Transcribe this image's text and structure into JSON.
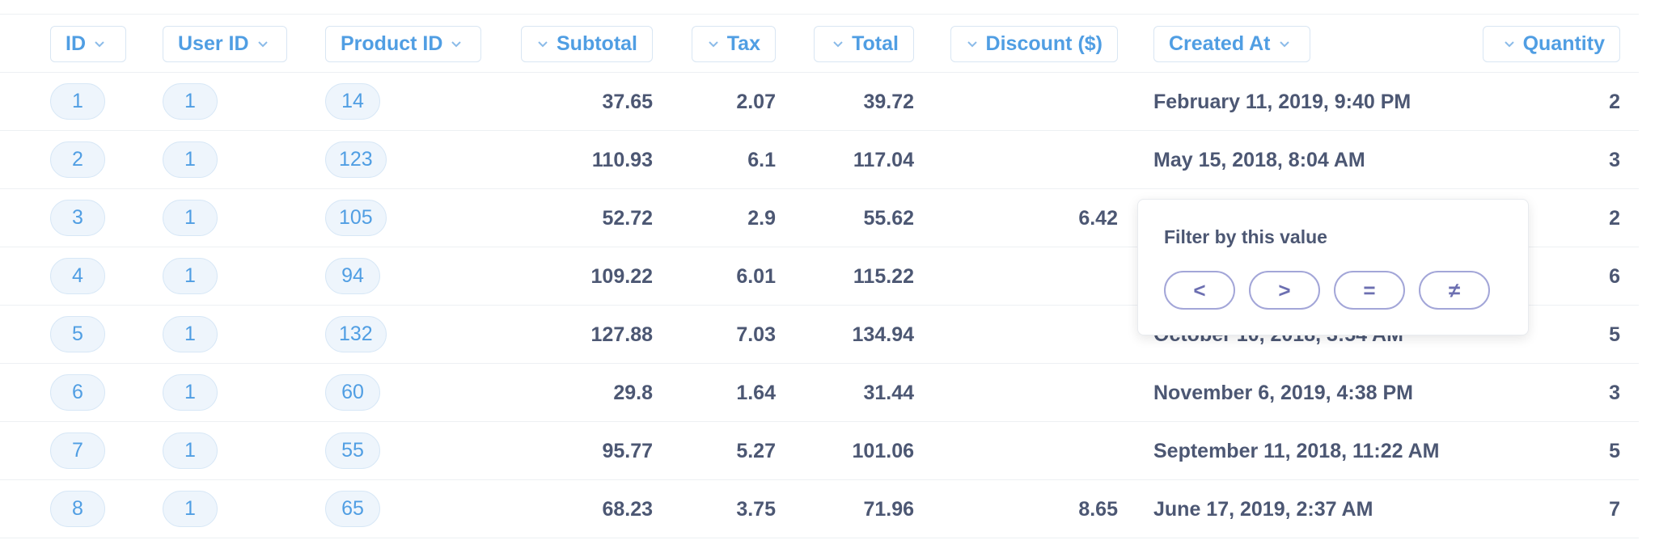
{
  "table": {
    "columns": [
      "ID",
      "User ID",
      "Product ID",
      "Subtotal",
      "Tax",
      "Total",
      "Discount ($)",
      "Created At",
      "Quantity"
    ],
    "rows": [
      [
        1,
        1,
        14,
        37.65,
        2.07,
        39.72,
        null,
        "February 11, 2019, 9:40 PM",
        2
      ],
      [
        2,
        1,
        123,
        110.93,
        6.1,
        117.04,
        null,
        "May 15, 2018, 8:04 AM",
        3
      ],
      [
        3,
        1,
        105,
        52.72,
        2.9,
        55.62,
        6.42,
        null,
        2
      ],
      [
        4,
        1,
        94,
        109.22,
        6.01,
        115.22,
        null,
        null,
        6
      ],
      [
        5,
        1,
        132,
        127.88,
        7.03,
        134.94,
        null,
        "October 10, 2018, 3:54 AM",
        5
      ],
      [
        6,
        1,
        60,
        29.8,
        1.64,
        31.44,
        null,
        "November 6, 2019, 4:38 PM",
        3
      ],
      [
        7,
        1,
        55,
        95.77,
        5.27,
        101.06,
        null,
        "September 11, 2018, 11:22 AM",
        5
      ],
      [
        8,
        1,
        65,
        68.23,
        3.75,
        71.96,
        8.65,
        "June 17, 2019, 2:37 AM",
        7
      ]
    ]
  },
  "popover": {
    "title": "Filter by this value",
    "buttons": [
      "<",
      ">",
      "=",
      "≠"
    ]
  }
}
